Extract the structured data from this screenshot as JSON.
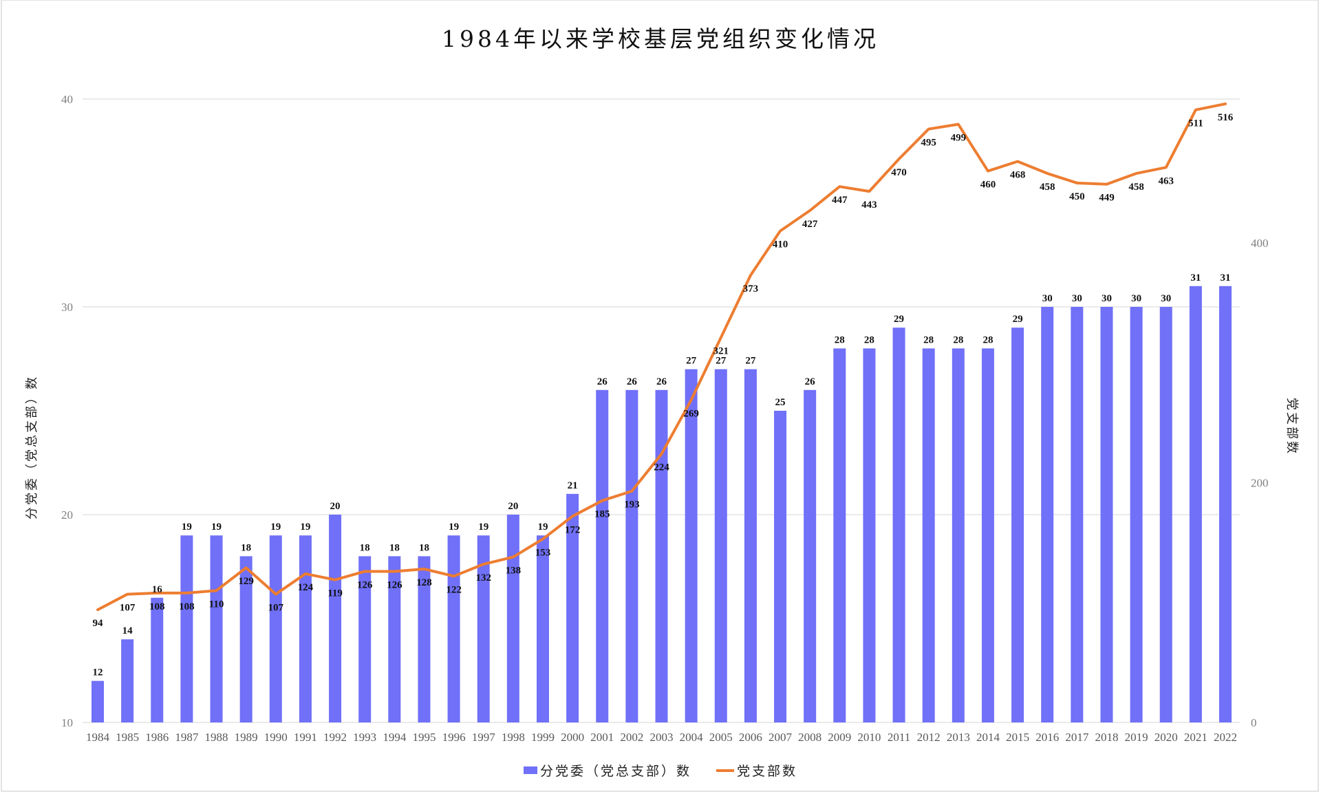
{
  "title": "1984年以来学校基层党组织变化情况",
  "colors": {
    "bar": "#7070f8",
    "line": "#ed7d31",
    "grid": "#e4e4e4"
  },
  "legend": {
    "bar_label": "分党委（党总支部）数",
    "line_label": "党支部数"
  },
  "chart_data": {
    "type": "bar+line",
    "title": "1984年以来学校基层党组织变化情况",
    "xlabel": "",
    "ylabel": "分党委（党总支部）数",
    "y2label": "党支部数",
    "ylim": [
      10,
      40
    ],
    "y2lim": [
      0,
      520
    ],
    "yticks": [
      10,
      20,
      30,
      40
    ],
    "y2ticks": [
      0,
      200,
      400
    ],
    "grid": true,
    "legend_position": "bottom",
    "categories": [
      "1984",
      "1985",
      "1986",
      "1987",
      "1988",
      "1989",
      "1990",
      "1991",
      "1992",
      "1993",
      "1994",
      "1995",
      "1996",
      "1997",
      "1998",
      "1999",
      "2000",
      "2001",
      "2002",
      "2003",
      "2004",
      "2005",
      "2006",
      "2007",
      "2008",
      "2009",
      "2010",
      "2011",
      "2012",
      "2013",
      "2014",
      "2015",
      "2016",
      "2017",
      "2018",
      "2019",
      "2020",
      "2021",
      "2022"
    ],
    "series": [
      {
        "name": "分党委（党总支部）数",
        "type": "bar",
        "axis": "left",
        "values": [
          12,
          14,
          16,
          19,
          19,
          18,
          19,
          19,
          20,
          18,
          18,
          18,
          19,
          19,
          20,
          19,
          21,
          26,
          26,
          26,
          27,
          27,
          27,
          25,
          26,
          28,
          28,
          29,
          28,
          28,
          28,
          29,
          30,
          30,
          30,
          30,
          30,
          31,
          31
        ]
      },
      {
        "name": "党支部数",
        "type": "line",
        "axis": "right",
        "values": [
          94,
          107,
          108,
          108,
          110,
          129,
          107,
          124,
          119,
          126,
          126,
          128,
          122,
          132,
          138,
          153,
          172,
          185,
          193,
          224,
          269,
          321,
          373,
          410,
          427,
          447,
          443,
          470,
          495,
          499,
          460,
          468,
          458,
          450,
          449,
          458,
          463,
          511,
          516
        ]
      }
    ]
  }
}
